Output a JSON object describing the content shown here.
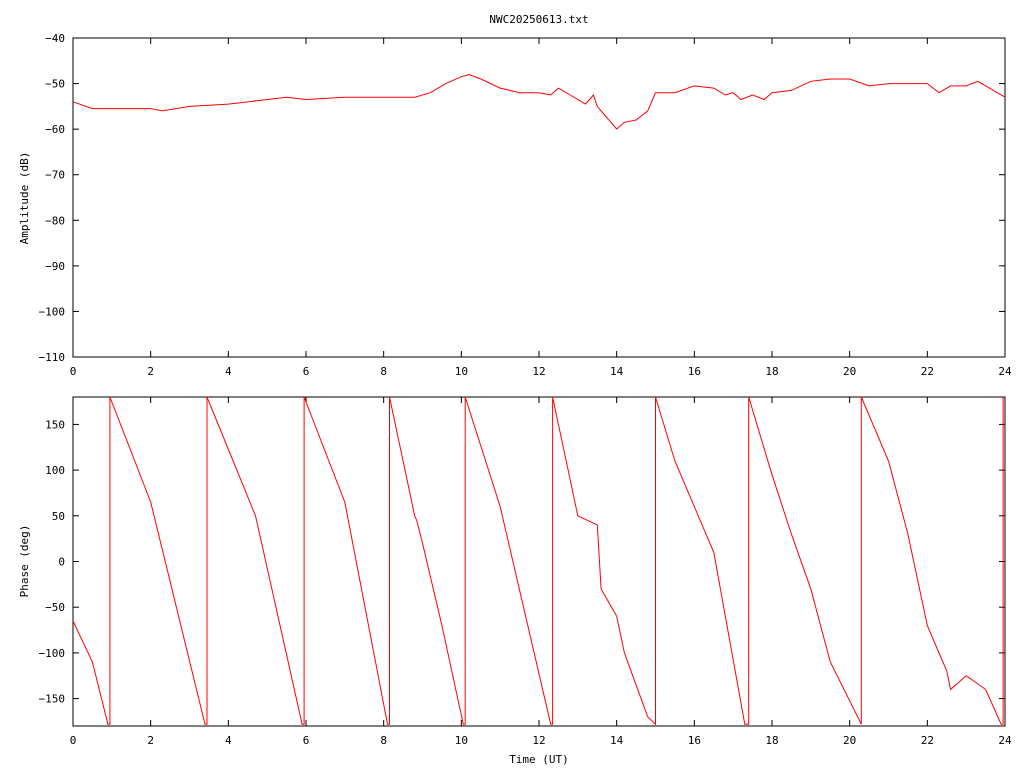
{
  "page": {
    "title": "NWC20250613.txt"
  },
  "colors": {
    "series": "#ff0000",
    "axis": "#000000",
    "background": "#ffffff"
  },
  "chart_data": [
    {
      "type": "line",
      "title": "NWC20250613.txt",
      "xlabel": "",
      "ylabel": "Amplitude (dB)",
      "xlim": [
        0,
        24
      ],
      "ylim": [
        -110,
        -40
      ],
      "grid": false,
      "xticks": [
        0,
        2,
        4,
        6,
        8,
        10,
        12,
        14,
        16,
        18,
        20,
        22,
        24
      ],
      "yticks": [
        -110,
        -100,
        -90,
        -80,
        -70,
        -60,
        -50,
        -40
      ],
      "series": [
        {
          "x": [
            0,
            0.5,
            1,
            1.5,
            2,
            2.3,
            3,
            4,
            5,
            5.5,
            6,
            7,
            8,
            8.8,
            9.2,
            9.6,
            10,
            10.2,
            10.5,
            11,
            11.5,
            12,
            12.3,
            12.5,
            12.8,
            13.2,
            13.4,
            13.5,
            13.7,
            14,
            14.2,
            14.5,
            14.8,
            15,
            15.5,
            16,
            16.5,
            16.8,
            17,
            17.2,
            17.5,
            17.8,
            18,
            18.5,
            19,
            19.5,
            20,
            20.5,
            21,
            21.5,
            22,
            22.3,
            22.6,
            23,
            23.3,
            23.6,
            24
          ],
          "y": [
            -54,
            -55.5,
            -55.5,
            -55.5,
            -55.5,
            -56,
            -55,
            -54.5,
            -53.5,
            -53,
            -53.5,
            -53,
            -53,
            -53,
            -52,
            -50,
            -48.5,
            -48,
            -49,
            -51,
            -52,
            -52,
            -52.5,
            -51,
            -52.5,
            -54.5,
            -52.5,
            -55,
            -57,
            -60,
            -58.5,
            -58,
            -56,
            -52,
            -52,
            -50.5,
            -51,
            -52.5,
            -52,
            -53.5,
            -52.5,
            -53.5,
            -52,
            -51.5,
            -49.5,
            -49,
            -49,
            -50.5,
            -50,
            -50,
            -50,
            -52,
            -50.5,
            -50.5,
            -49.5,
            -51,
            -53
          ]
        }
      ]
    },
    {
      "type": "line",
      "title": "",
      "xlabel": "Time (UT)",
      "ylabel": "Phase (deg)",
      "xlim": [
        0,
        24
      ],
      "ylim": [
        -180,
        180
      ],
      "grid": false,
      "xticks": [
        0,
        2,
        4,
        6,
        8,
        10,
        12,
        14,
        16,
        18,
        20,
        22,
        24
      ],
      "yticks": [
        -150,
        -100,
        -50,
        0,
        50,
        100,
        150
      ],
      "series": [
        {
          "x": [
            0,
            0.5,
            0.9,
            0.95,
            0.95,
            2.0,
            3.4,
            3.45,
            3.45,
            4.7,
            5.9,
            5.95,
            5.95,
            7.0,
            8.1,
            8.15,
            8.15,
            8.8,
            8.85,
            9.0,
            9.5,
            10.05,
            10.1,
            10.1,
            11.0,
            12.3,
            12.35,
            12.35,
            12.6,
            13.0,
            13.5,
            13.6,
            13.8,
            14.0,
            14.2,
            14.8,
            15.0,
            15.0,
            15.5,
            16.5,
            17.3,
            17.4,
            17.4,
            18.0,
            18.5,
            19.0,
            19.5,
            20.3,
            20.3,
            20.3,
            21.0,
            21.5,
            22.0,
            22.5,
            22.6,
            23.0,
            23.5,
            23.9,
            23.95,
            23.95
          ],
          "y": [
            -65,
            -110,
            -178,
            -178,
            180,
            65,
            -178,
            -178,
            180,
            50,
            -178,
            -178,
            180,
            65,
            -178,
            -178,
            180,
            50,
            45,
            20,
            -70,
            -178,
            -178,
            180,
            60,
            -178,
            -178,
            180,
            130,
            50,
            40,
            -30,
            -45,
            -60,
            -100,
            -170,
            -178,
            180,
            110,
            10,
            -178,
            -178,
            180,
            95,
            30,
            -30,
            -110,
            -178,
            -178,
            180,
            110,
            30,
            -70,
            -120,
            -140,
            -125,
            -140,
            -178,
            -178,
            180
          ]
        }
      ]
    }
  ]
}
